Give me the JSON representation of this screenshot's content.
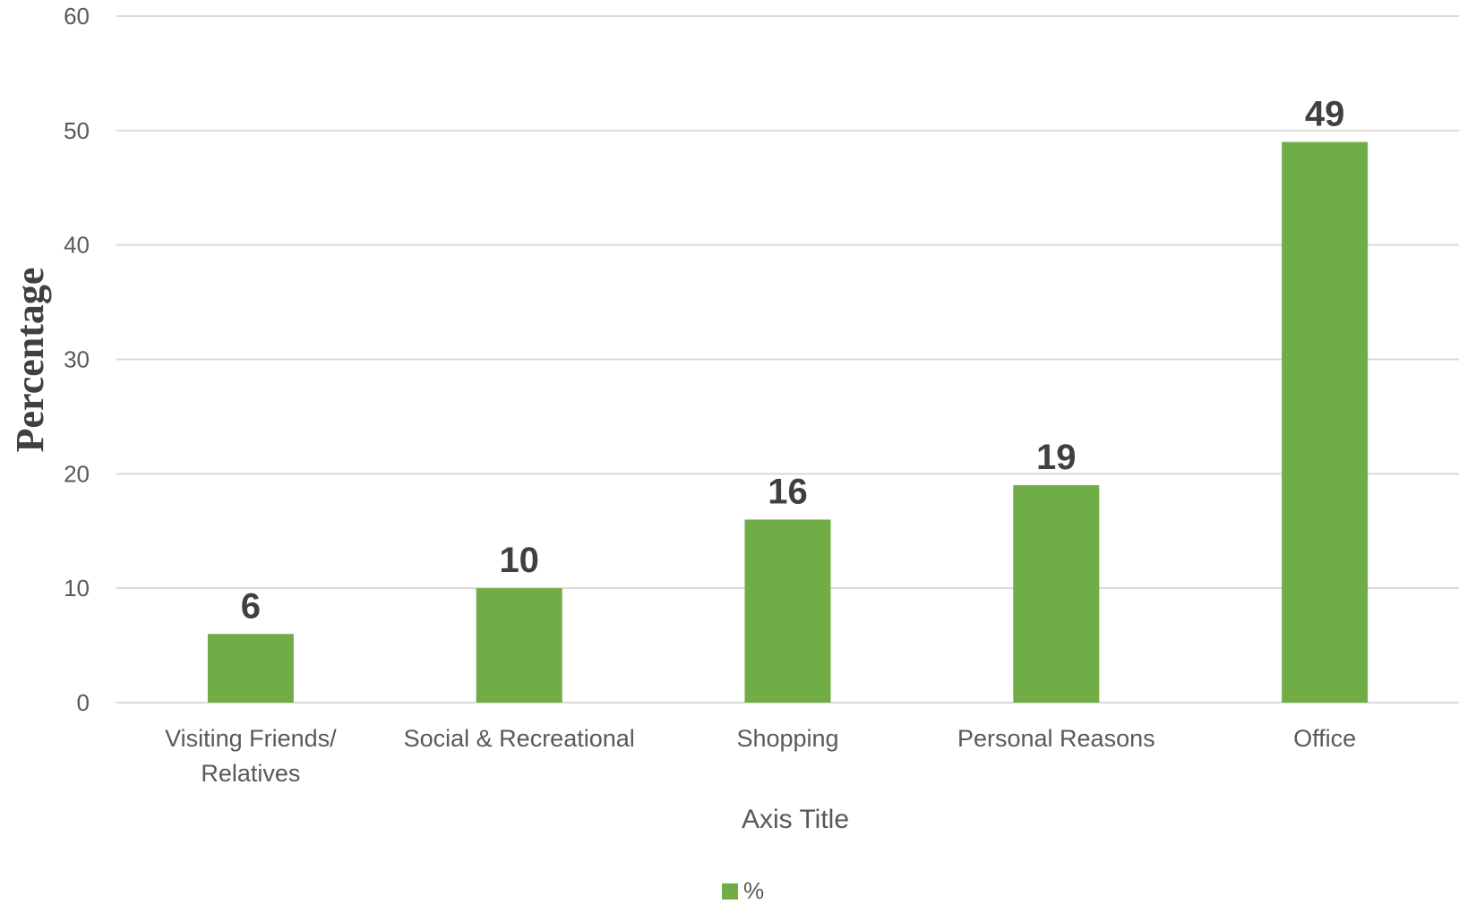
{
  "chart_data": {
    "type": "bar",
    "categories": [
      [
        "Visiting Friends/",
        "Relatives"
      ],
      [
        "Social & Recreational"
      ],
      [
        "Shopping"
      ],
      [
        "Personal Reasons"
      ],
      [
        "Office"
      ]
    ],
    "series": [
      {
        "name": "%",
        "values": [
          6,
          10,
          16,
          19,
          49
        ],
        "color": "#70AD47"
      }
    ],
    "xlabel": "Axis Title",
    "ylabel": "Percentage",
    "ylim": [
      0,
      60
    ],
    "yticks": [
      0,
      10,
      20,
      30,
      40,
      50,
      60
    ],
    "grid": true,
    "legend_position": "bottom",
    "data_labels": true
  }
}
